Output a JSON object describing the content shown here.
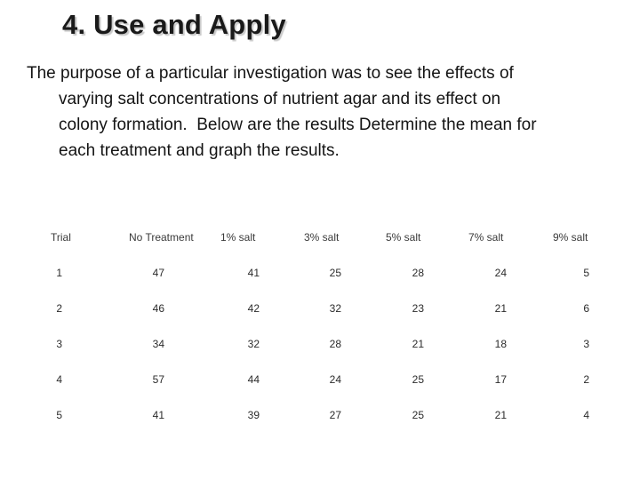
{
  "slide": {
    "title": "4. Use and Apply",
    "body_lines": [
      "The purpose of a particular investigation was to see the effects of",
      "varying salt concentrations of nutrient agar and its effect on",
      "colony formation.  Below are the results Determine the mean for",
      "each treatment and graph the results."
    ]
  },
  "table": {
    "headers": [
      "Trial",
      "No Treatment",
      "1% salt",
      "3% salt",
      "5% salt",
      "7% salt",
      "9% salt"
    ],
    "rows": [
      [
        "1",
        "47",
        "41",
        "25",
        "28",
        "24",
        "5"
      ],
      [
        "2",
        "46",
        "42",
        "32",
        "23",
        "21",
        "6"
      ],
      [
        "3",
        "34",
        "32",
        "28",
        "21",
        "18",
        "3"
      ],
      [
        "4",
        "57",
        "44",
        "24",
        "25",
        "17",
        "2"
      ],
      [
        "5",
        "41",
        "39",
        "27",
        "25",
        "21",
        "4"
      ]
    ]
  },
  "colors": {
    "background": "#ffffff",
    "text": "#141414",
    "table_text": "#2b2b2b"
  }
}
